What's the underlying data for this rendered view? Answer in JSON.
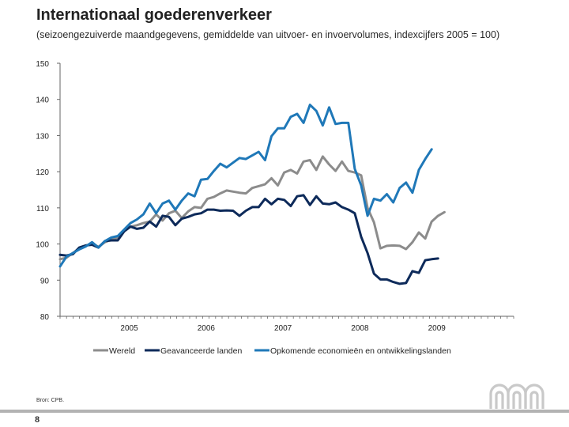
{
  "page": {
    "title": "Internationaal goederenverkeer",
    "subtitle": "(seizoengezuiverde maandgegevens, gemiddelde van uitvoer- en invoervolumes, indexcijfers 2005 = 100)",
    "source": "Bron: CPB.",
    "page_number": "8"
  },
  "chart_data": {
    "type": "line",
    "title": "Internationaal goederenverkeer",
    "xlabel": "",
    "ylabel": "",
    "ylim": [
      80,
      150
    ],
    "yticks": [
      150,
      140,
      130,
      120,
      110,
      100,
      90,
      80
    ],
    "xlim": [
      2004.0,
      2009.9
    ],
    "xtick_labels": [
      {
        "x": 2004.9,
        "label": "2005"
      },
      {
        "x": 2005.9,
        "label": "2006"
      },
      {
        "x": 2006.9,
        "label": "2007"
      },
      {
        "x": 2007.9,
        "label": "2008"
      },
      {
        "x": 2008.9,
        "label": "2009"
      }
    ],
    "x_start": 2004.0,
    "x_step": 0.08333,
    "legend_position": "bottom",
    "series": [
      {
        "name": "Wereld",
        "color": "#8c8c8c",
        "values": [
          95.8,
          96.2,
          97.5,
          98.8,
          99.5,
          100.2,
          99.2,
          100.5,
          101.2,
          101.8,
          103.5,
          104.8,
          105.2,
          105.8,
          106.2,
          108.2,
          106.5,
          108.5,
          109.2,
          107.2,
          109.0,
          110.2,
          110.0,
          112.5,
          113.0,
          114.0,
          114.8,
          114.5,
          114.2,
          114.0,
          115.5,
          116.0,
          116.5,
          118.2,
          116.2,
          119.8,
          120.5,
          119.5,
          122.8,
          123.2,
          120.5,
          124.2,
          122.0,
          120.2,
          122.8,
          120.2,
          119.8,
          119.0,
          110.0,
          106.0,
          98.8,
          99.5,
          99.6,
          99.5,
          98.6,
          100.5,
          103.2,
          101.5,
          106.2,
          107.8,
          108.8
        ]
      },
      {
        "name": "Geavanceerde landen",
        "color": "#0d2a5a",
        "values": [
          97.0,
          96.8,
          97.2,
          99.0,
          99.6,
          99.8,
          99.0,
          100.8,
          101.0,
          101.0,
          103.5,
          104.8,
          104.2,
          104.5,
          106.2,
          104.8,
          107.8,
          107.5,
          105.2,
          107.0,
          107.5,
          108.2,
          108.5,
          109.5,
          109.5,
          109.2,
          109.3,
          109.2,
          107.8,
          109.2,
          110.2,
          110.2,
          112.5,
          111.0,
          112.5,
          112.2,
          110.5,
          113.2,
          113.5,
          110.8,
          113.2,
          111.2,
          111.0,
          111.5,
          110.2,
          109.5,
          108.5,
          102.0,
          97.5,
          91.8,
          90.2,
          90.2,
          89.5,
          89.0,
          89.2,
          92.5,
          92.0,
          95.5,
          95.8,
          96.0
        ]
      },
      {
        "name": "Opkomende economieën en ontwikkelingslanden",
        "color": "#1f78b8",
        "values": [
          93.8,
          96.5,
          97.5,
          98.5,
          99.3,
          100.5,
          99.0,
          100.8,
          101.8,
          102.2,
          104.0,
          105.8,
          106.8,
          108.2,
          111.2,
          108.5,
          111.2,
          112.0,
          109.5,
          112.0,
          114.0,
          113.2,
          117.8,
          118.0,
          120.2,
          122.2,
          121.2,
          122.5,
          123.8,
          123.5,
          124.5,
          125.5,
          123.2,
          129.8,
          132.0,
          132.0,
          135.2,
          136.0,
          133.5,
          138.5,
          136.8,
          132.8,
          137.8,
          133.2,
          133.5,
          133.5,
          120.8,
          116.2,
          107.8,
          112.5,
          112.0,
          113.8,
          111.5,
          115.5,
          117.0,
          114.2,
          120.5,
          123.5,
          126.2
        ]
      }
    ]
  }
}
